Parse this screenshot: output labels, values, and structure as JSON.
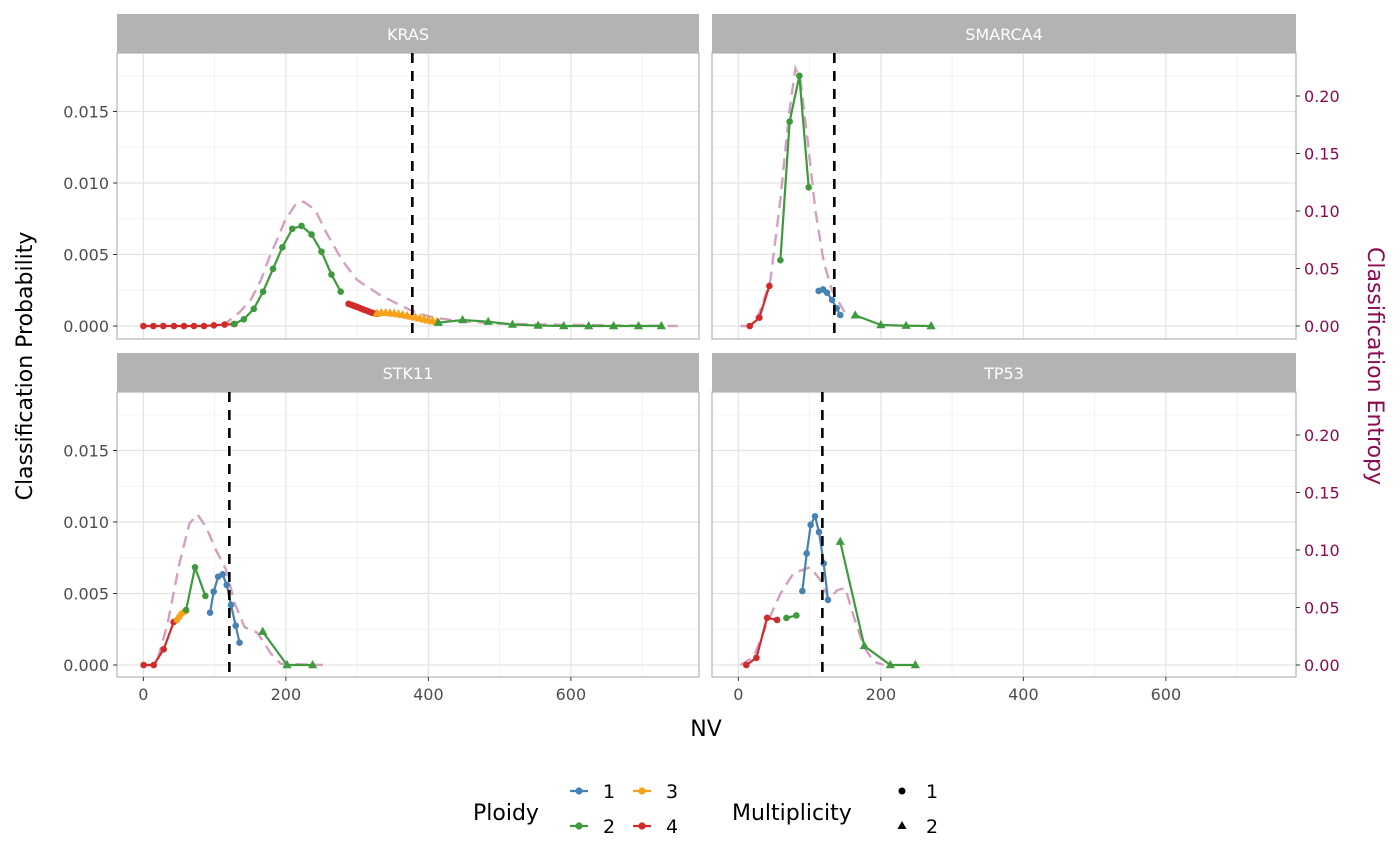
{
  "chart_data": {
    "type": "line",
    "xlabel": "NV",
    "ylabel": "Classification Probability",
    "ylabel_secondary": "Classification Entropy",
    "xlim": [
      -37,
      779
    ],
    "ylim": [
      -0.0009,
      0.0191
    ],
    "ylim_secondary": [
      -0.011,
      0.237
    ],
    "x_ticks": [
      "0",
      "200",
      "400",
      "600"
    ],
    "y_ticks": [
      "0.000",
      "0.005",
      "0.010",
      "0.015"
    ],
    "y_ticks_secondary": [
      "0.00",
      "0.05",
      "0.10",
      "0.15",
      "0.20"
    ],
    "grid": true,
    "colors": {
      "1": "#4682B4",
      "2": "#3E9A3C",
      "3": "#F7A21B",
      "4": "#D12A2A",
      "entropy": "#D4A0BF",
      "entropy_axis": "#8B0A50",
      "threshold": "#000000"
    },
    "legend": {
      "placement": "bottom",
      "ploidy_title": "Ploidy",
      "ploidy_items": [
        "1",
        "2",
        "3",
        "4"
      ],
      "multiplicity_title": "Multiplicity",
      "multiplicity_items": [
        "1",
        "2"
      ]
    },
    "panels": [
      {
        "title": "KRAS",
        "threshold": 377.5,
        "series": [
          {
            "ploidy": "4",
            "multiplicity": "1",
            "points": [
              [
                0,
                0
              ],
              [
                14,
                0
              ],
              [
                28,
                0
              ],
              [
                43,
                0
              ],
              [
                57,
                0
              ],
              [
                71,
                0
              ],
              [
                85,
                0
              ],
              [
                99,
                5e-05
              ],
              [
                114,
                0.0001
              ],
              [
                128,
                0.00014
              ]
            ]
          },
          {
            "ploidy": "2",
            "multiplicity": "1",
            "points": [
              [
                127,
                0.00014
              ],
              [
                141,
                0.00047
              ],
              [
                155,
                0.0012
              ],
              [
                168,
                0.0024
              ],
              [
                182,
                0.004
              ],
              [
                195,
                0.0055
              ],
              [
                209,
                0.0068
              ],
              [
                222,
                0.007
              ],
              [
                236,
                0.0064
              ],
              [
                250,
                0.0052
              ],
              [
                264,
                0.0036
              ],
              [
                277,
                0.0024
              ]
            ]
          },
          {
            "ploidy": "4",
            "multiplicity": "1",
            "points": [
              [
                288,
                0.00155
              ],
              [
                292,
                0.00148
              ],
              [
                296,
                0.0014
              ],
              [
                300,
                0.00133
              ],
              [
                304,
                0.00125
              ],
              [
                308,
                0.00117
              ],
              [
                312,
                0.0011
              ],
              [
                316,
                0.00102
              ],
              [
                320,
                0.00094
              ],
              [
                324,
                0.00088
              ],
              [
                328,
                0.00085
              ]
            ]
          },
          {
            "ploidy": "3",
            "multiplicity": "2",
            "points": [
              [
                328,
                0.00088
              ],
              [
                334,
                0.00092
              ],
              [
                340,
                0.00092
              ],
              [
                346,
                0.0009
              ],
              [
                352,
                0.00087
              ],
              [
                358,
                0.00083
              ],
              [
                364,
                0.00078
              ],
              [
                370,
                0.00072
              ],
              [
                376,
                0.00066
              ],
              [
                382,
                0.0006
              ],
              [
                388,
                0.00053
              ],
              [
                394,
                0.00046
              ],
              [
                400,
                0.0004
              ],
              [
                406,
                0.00034
              ],
              [
                412,
                0.0003
              ]
            ]
          },
          {
            "ploidy": "2",
            "multiplicity": "2",
            "points": [
              [
                414,
                0.00023
              ],
              [
                448,
                0.00042
              ],
              [
                484,
                0.0003
              ],
              [
                518,
                0.0001
              ],
              [
                554,
                3e-05
              ],
              [
                590,
                0
              ],
              [
                625,
                0
              ],
              [
                660,
                0
              ],
              [
                695,
                0
              ],
              [
                727,
                0
              ]
            ]
          }
        ],
        "entropy": [
          [
            110,
            0
          ],
          [
            119,
            0.004
          ],
          [
            135,
            0.012
          ],
          [
            151,
            0.023
          ],
          [
            165,
            0.04
          ],
          [
            177,
            0.06
          ],
          [
            189,
            0.077
          ],
          [
            199,
            0.092
          ],
          [
            215,
            0.107
          ],
          [
            225,
            0.108
          ],
          [
            241,
            0.101
          ],
          [
            257,
            0.081
          ],
          [
            279,
            0.057
          ],
          [
            300,
            0.04
          ],
          [
            332,
            0.027
          ],
          [
            364,
            0.017
          ],
          [
            385,
            0.011
          ],
          [
            410,
            0.007
          ],
          [
            450,
            0.004
          ],
          [
            500,
            0.002
          ],
          [
            600,
            0.001
          ],
          [
            750,
            0
          ]
        ]
      },
      {
        "title": "SMARCA4",
        "threshold": 134.7,
        "series": [
          {
            "ploidy": "4",
            "multiplicity": "1",
            "points": [
              [
                16,
                0
              ],
              [
                29.5,
                0.00058
              ],
              [
                43.5,
                0.0028
              ]
            ]
          },
          {
            "ploidy": "2",
            "multiplicity": "1",
            "points": [
              [
                59,
                0.0046
              ],
              [
                72,
                0.0143
              ],
              [
                85.6,
                0.0175
              ],
              [
                98.7,
                0.0097
              ]
            ]
          },
          {
            "ploidy": "1",
            "multiplicity": "1",
            "points": [
              [
                112.7,
                0.00245
              ],
              [
                118.8,
                0.00256
              ],
              [
                124.4,
                0.00233
              ],
              [
                131.5,
                0.00182
              ],
              [
                138,
                0.00124
              ],
              [
                143,
                0.00077
              ]
            ]
          },
          {
            "ploidy": "2",
            "multiplicity": "2",
            "points": [
              [
                164,
                0.00075
              ],
              [
                200,
                7e-05
              ],
              [
                235.4,
                2e-05
              ],
              [
                270.5,
                0
              ]
            ]
          }
        ],
        "entropy": [
          [
            3,
            0
          ],
          [
            17,
            0
          ],
          [
            30,
            0.012
          ],
          [
            45,
            0.04
          ],
          [
            59,
            0.11
          ],
          [
            70.6,
            0.182
          ],
          [
            80,
            0.224
          ],
          [
            87,
            0.214
          ],
          [
            96,
            0.168
          ],
          [
            108,
            0.101
          ],
          [
            120,
            0.055
          ],
          [
            131.5,
            0.031
          ],
          [
            149,
            0.012
          ]
        ]
      },
      {
        "title": "STK11",
        "threshold": 120.7,
        "series": [
          {
            "ploidy": "4",
            "multiplicity": "1",
            "points": [
              [
                0.4,
                0
              ],
              [
                14.5,
                0
              ],
              [
                28.5,
                0.0011
              ],
              [
                42.5,
                0.003
              ]
            ]
          },
          {
            "ploidy": "3",
            "multiplicity": "1",
            "points": [
              [
                47,
                0.00315
              ],
              [
                50.5,
                0.00338
              ],
              [
                53.8,
                0.0036
              ],
              [
                57.5,
                0.00373
              ],
              [
                60,
                0.00378
              ]
            ]
          },
          {
            "ploidy": "2",
            "multiplicity": "1",
            "points": [
              [
                60,
                0.00385
              ],
              [
                72.5,
                0.00683
              ],
              [
                87,
                0.00483
              ]
            ]
          },
          {
            "ploidy": "1",
            "multiplicity": "1",
            "points": [
              [
                93.6,
                0.00366
              ],
              [
                98.7,
                0.00513
              ],
              [
                105,
                0.00618
              ],
              [
                111.3,
                0.00634
              ],
              [
                117,
                0.0056
              ],
              [
                123,
                0.0042
              ],
              [
                129.6,
                0.00275
              ],
              [
                135,
                0.00156
              ]
            ]
          },
          {
            "ploidy": "2",
            "multiplicity": "2",
            "points": [
              [
                167.5,
                0.00233
              ],
              [
                201.6,
                0
              ],
              [
                237.6,
                0
              ]
            ]
          }
        ],
        "entropy": [
          [
            0,
            0
          ],
          [
            17.8,
            0
          ],
          [
            34,
            0.036
          ],
          [
            50.5,
            0.088
          ],
          [
            64.6,
            0.123
          ],
          [
            76,
            0.131
          ],
          [
            88,
            0.12
          ],
          [
            102,
            0.1
          ],
          [
            116,
            0.083
          ],
          [
            128,
            0.054
          ],
          [
            142,
            0.033
          ],
          [
            160,
            0.028
          ],
          [
            179,
            0.01
          ],
          [
            193,
            0.001
          ],
          [
            252,
            0
          ]
        ]
      },
      {
        "title": "TP53",
        "threshold": 117.9,
        "series": [
          {
            "ploidy": "4",
            "multiplicity": "1",
            "points": [
              [
                11.2,
                0
              ],
              [
                25.3,
                0.0005
              ],
              [
                40.3,
                0.0033
              ],
              [
                54.3,
                0.00315
              ]
            ]
          },
          {
            "ploidy": "2",
            "multiplicity": "1",
            "points": [
              [
                67.4,
                0.00329
              ],
              [
                81.4,
                0.00347
              ]
            ]
          },
          {
            "ploidy": "1",
            "multiplicity": "1",
            "points": [
              [
                89.8,
                0.00517
              ],
              [
                95.9,
                0.0078
              ],
              [
                101.5,
                0.0098
              ],
              [
                107.6,
                0.0104
              ],
              [
                113.2,
                0.0093
              ],
              [
                119.8,
                0.0071
              ],
              [
                125.8,
                0.00455
              ]
            ]
          },
          {
            "ploidy": "2",
            "multiplicity": "2",
            "points": [
              [
                143,
                0.00862
              ],
              [
                176.8,
                0.00133
              ],
              [
                213.3,
                0
              ],
              [
                248.4,
                0
              ]
            ]
          }
        ],
        "entropy": [
          [
            2.8,
            0
          ],
          [
            21.5,
            0.007
          ],
          [
            40,
            0.036
          ],
          [
            59,
            0.062
          ],
          [
            77.6,
            0.08
          ],
          [
            101,
            0.085
          ],
          [
            115,
            0.074
          ],
          [
            127,
            0.057
          ],
          [
            138.5,
            0.065
          ],
          [
            150,
            0.067
          ],
          [
            162,
            0.042
          ],
          [
            176,
            0.016
          ],
          [
            190,
            0.003
          ],
          [
            204,
            0
          ]
        ]
      }
    ]
  }
}
